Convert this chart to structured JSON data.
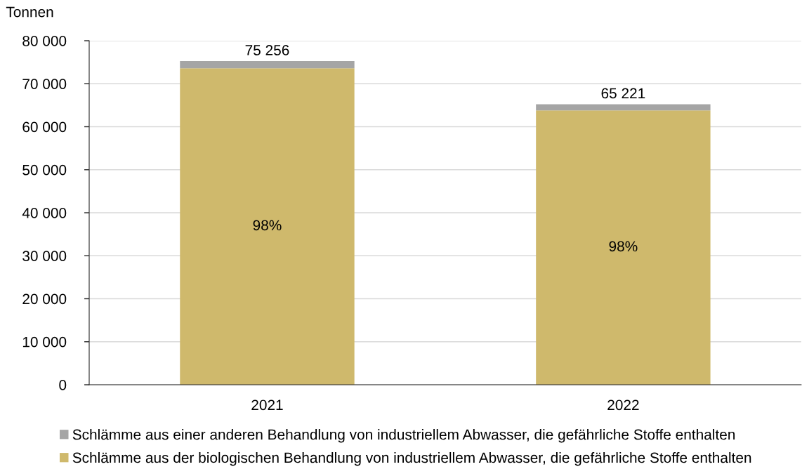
{
  "chart_data": {
    "type": "bar",
    "ylabel": "Tonnen",
    "categories": [
      "2021",
      "2022"
    ],
    "stacked": true,
    "series": [
      {
        "name": "Schlämme aus der biologischen Behandlung von industriellem Abwasser, die gefährliche Stoffe enthalten",
        "color": "#cfb96c",
        "values": [
          73600,
          63800
        ]
      },
      {
        "name": "Schlämme aus einer anderen Behandlung von industriellem Abwasser, die gefährliche Stoffe enthalten",
        "color": "#a5a5a5",
        "values": [
          1656,
          1421
        ]
      }
    ],
    "totals": [
      "75 256",
      "65 221"
    ],
    "annotations": [
      "98%",
      "98%"
    ],
    "ylim": [
      0,
      80000
    ],
    "yticks": [
      0,
      {
        "value": 10000,
        "label": "10 000"
      },
      {
        "value": 20000,
        "label": "20 000"
      },
      {
        "value": 30000,
        "label": "30 000"
      },
      {
        "value": 40000,
        "label": "40 000"
      },
      {
        "value": 50000,
        "label": "50 000"
      },
      {
        "value": 60000,
        "label": "60 000"
      },
      {
        "value": 70000,
        "label": "70 000"
      },
      {
        "value": 80000,
        "label": "80 000"
      }
    ],
    "grid": "y",
    "legend": "bottom"
  }
}
